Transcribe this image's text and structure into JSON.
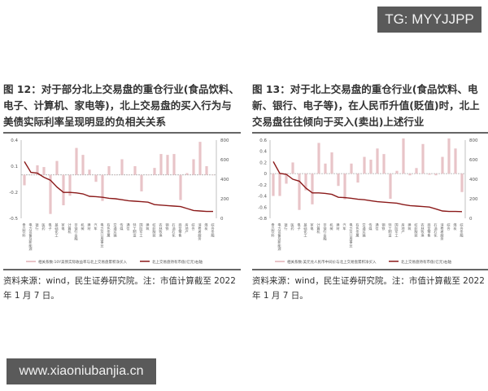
{
  "watermarks": {
    "top": "TG: MYYJJPP",
    "bottom": "www.xiaoniubanjia.cn"
  },
  "figures": [
    {
      "title": "图 12：对于部分北上交易盘的重仓行业(食品饮料、电子、计算机、家电等)，北上交易盘的买入行为与美债实际利率呈现明显的负相关关系",
      "source": "资料来源：wind，民生证券研究院。注：市值计算截至 2022 年 1 月 7 日。",
      "legend": [
        "相关系数:10Y美债实际收益率与北上交易盘累积净买入",
        "北上交易盘持有市值(亿元)右轴"
      ]
    },
    {
      "title": "图 13：对于北上交易盘的重仓行业(食品饮料、电新、银行、电子等)，在人民币升值(贬值)时，北上交易盘往往倾向于买入(卖出)上述行业",
      "source": "资料来源：wind，民生证券研究院。注：市值计算截至 2022 年 1 月 7 日。",
      "legend": [
        "相关系数:美元兑人民币中间价与北上交易盘累积净买入",
        "北上交易盘持有市值(亿元)右轴"
      ]
    }
  ],
  "chart_data": [
    {
      "type": "bar",
      "title": "对于部分北上交易盘的重仓行业，北上交易盘的买入行为与美债实际利率呈现明显的负相关关系",
      "categories": [
        "食品饮料",
        "电力设备及新能源",
        "银行",
        "医药",
        "电子",
        "基础化工",
        "家电",
        "计算机",
        "非银行金融",
        "机械",
        "建材",
        "汽车",
        "电力及公用事业",
        "有色金属",
        "交通运输",
        "传媒",
        "通信",
        "轻工制造",
        "国防军工",
        "建筑",
        "纺织服装",
        "农林牧渔",
        "钢铁",
        "石油石化",
        "商贸零售",
        "房地产",
        "综合",
        "消费者服务",
        "煤炭",
        "综合金融"
      ],
      "series": [
        {
          "name": "相关系数:10Y美债实际收益率与北上交易盘累积净买入",
          "axis": "left",
          "type": "bar",
          "values": [
            -0.12,
            0.0,
            0.11,
            0.09,
            -0.45,
            0.16,
            -0.35,
            -0.24,
            0.31,
            0.23,
            0.06,
            -0.08,
            -0.3,
            0.1,
            0.0,
            0.18,
            0.0,
            0.1,
            -0.19,
            0.0,
            0.08,
            0.24,
            0.23,
            0.24,
            -0.29,
            0.02,
            0.18,
            0.38,
            0.1,
            0.0
          ]
        },
        {
          "name": "北上交易盘持有市值(亿元)右轴",
          "axis": "right",
          "type": "line",
          "values": [
            580,
            470,
            462,
            420,
            390,
            320,
            265,
            265,
            260,
            250,
            225,
            222,
            215,
            205,
            200,
            190,
            180,
            175,
            170,
            165,
            140,
            135,
            130,
            125,
            120,
            100,
            80,
            75,
            70,
            70
          ]
        }
      ],
      "ylim": [
        -0.5,
        0.4
      ],
      "yticks": [
        0.4,
        0.1,
        -0.2,
        -0.5
      ],
      "y2lim": [
        0,
        800
      ],
      "y2ticks": [
        0,
        200,
        400,
        600,
        800
      ],
      "xlabel": "",
      "ylabel": "",
      "legend_position": "bottom",
      "grid": false
    },
    {
      "type": "bar",
      "title": "在人民币升值(贬值)时，北上交易盘往往倾向于买入(卖出)上述行业",
      "categories": [
        "食品饮料",
        "电力设备及新能源",
        "银行",
        "医药",
        "电子",
        "基础化工",
        "家电",
        "计算机",
        "非银行金融",
        "机械",
        "建材",
        "汽车",
        "电力及公用事业",
        "有色金属",
        "交通运输",
        "传媒",
        "通信",
        "钢铁",
        "轻工制造",
        "国防军工",
        "房地产",
        "建筑",
        "纺织服装",
        "农林牧渔",
        "商贸零售",
        "石油石化",
        "消费者服务",
        "综合",
        "煤炭",
        "综合金融"
      ],
      "series": [
        {
          "name": "相关系数:美元兑人民币中间价与北上交易盘累积净买入",
          "axis": "left",
          "type": "bar",
          "values": [
            -0.4,
            -0.4,
            -0.18,
            0.2,
            -0.65,
            -0.3,
            -0.55,
            0.55,
            0.18,
            0.38,
            -0.22,
            -0.46,
            0.18,
            -0.16,
            0.3,
            0.25,
            0.45,
            0.35,
            -0.45,
            0.05,
            0.63,
            -0.03,
            0.1,
            0.53,
            -0.02,
            -0.03,
            0.3,
            0.63,
            0.45,
            -0.33
          ]
        },
        {
          "name": "北上交易盘持有市值(亿元)右轴",
          "axis": "right",
          "type": "line",
          "values": [
            580,
            460,
            450,
            400,
            380,
            310,
            260,
            260,
            255,
            245,
            215,
            212,
            205,
            195,
            190,
            180,
            170,
            165,
            160,
            155,
            140,
            130,
            125,
            120,
            115,
            95,
            75,
            70,
            70,
            68
          ]
        }
      ],
      "ylim": [
        -0.8,
        0.6
      ],
      "yticks": [
        0.6,
        0.4,
        0.2,
        0,
        -0.2,
        -0.4,
        -0.6,
        -0.8
      ],
      "y2lim": [
        0,
        800
      ],
      "y2ticks": [
        0,
        200,
        400,
        600,
        800
      ],
      "xlabel": "",
      "ylabel": "",
      "legend_position": "bottom",
      "grid": false
    }
  ],
  "colors": {
    "bar": "#e8c4c8",
    "line": "#8b1a1a",
    "rule": "#666666",
    "badge": "#5a5a5a"
  }
}
